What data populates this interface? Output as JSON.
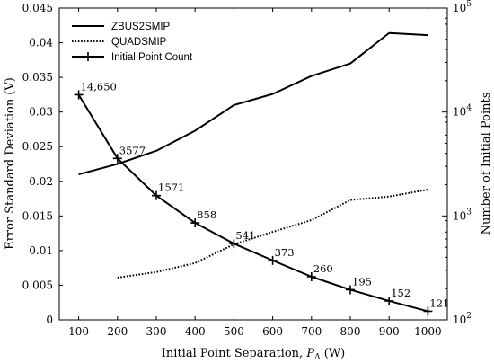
{
  "chart_data": {
    "type": "line",
    "xlabel": "Initial Point Separation, ",
    "xlabel_symbol": "P",
    "xlabel_sub": "Δ",
    "xlabel_unit": " (W)",
    "ylabel_left": "Error Standard Deviation (V)",
    "ylabel_right": "Number of Initial Points",
    "xlim": [
      50,
      1050
    ],
    "ylim_left": [
      0,
      0.045
    ],
    "ylim_right": [
      100,
      100000
    ],
    "right_scale": "log",
    "x_ticks": [
      100,
      200,
      300,
      400,
      500,
      600,
      700,
      800,
      900,
      1000
    ],
    "x_tick_labels": [
      "100",
      "200",
      "300",
      "400",
      "500",
      "600",
      "700",
      "800",
      "900",
      "1000"
    ],
    "y_left_ticks": [
      0,
      0.005,
      0.01,
      0.015,
      0.02,
      0.025,
      0.03,
      0.035,
      0.04,
      0.045
    ],
    "y_left_tick_labels": [
      "0",
      "0.005",
      "0.01",
      "0.015",
      "0.02",
      "0.025",
      "0.03",
      "0.035",
      "0.04",
      "0.045"
    ],
    "y_right_major_ticks": [
      100,
      1000,
      10000,
      100000
    ],
    "y_right_tick_labels": [
      {
        "base": "10",
        "exp": "2"
      },
      {
        "base": "10",
        "exp": "3"
      },
      {
        "base": "10",
        "exp": "4"
      },
      {
        "base": "10",
        "exp": "5"
      }
    ],
    "legend_position": "top-left",
    "grid": false,
    "series": [
      {
        "name": "ZBUS2SMIP",
        "axis": "left",
        "style": "solid",
        "x": [
          100,
          200,
          300,
          400,
          500,
          600,
          700,
          800,
          900,
          1000
        ],
        "values": [
          0.021,
          0.0225,
          0.0244,
          0.0273,
          0.031,
          0.0326,
          0.0352,
          0.037,
          0.0414,
          0.0411
        ]
      },
      {
        "name": "QUADSMIP",
        "axis": "left",
        "style": "dotted",
        "x": [
          200,
          300,
          400,
          500,
          600,
          700,
          800,
          900,
          1000
        ],
        "values": [
          0.0061,
          0.0069,
          0.0082,
          0.0109,
          0.0127,
          0.0144,
          0.0173,
          0.0178,
          0.0188
        ]
      },
      {
        "name": "Initial Point Count",
        "axis": "right",
        "style": "solid-marker",
        "x": [
          100,
          200,
          300,
          400,
          500,
          600,
          700,
          800,
          900,
          1000
        ],
        "values": [
          14650,
          3577,
          1571,
          858,
          541,
          373,
          260,
          195,
          152,
          121
        ],
        "labels": [
          "14,650",
          "3577",
          "1571",
          "858",
          "541",
          "373",
          "260",
          "195",
          "152",
          "121"
        ]
      }
    ]
  }
}
